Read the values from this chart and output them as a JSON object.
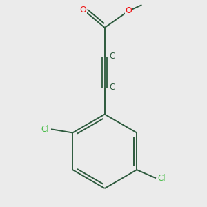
{
  "background_color": "#ebebeb",
  "bond_color": "#2d5a3d",
  "atom_colors": {
    "O": "#ee1111",
    "Cl": "#44bb44",
    "C": "#2d5a3d"
  },
  "figsize": [
    3.0,
    3.0
  ],
  "dpi": 100,
  "bond_lw": 1.4,
  "font_size": 8.5
}
